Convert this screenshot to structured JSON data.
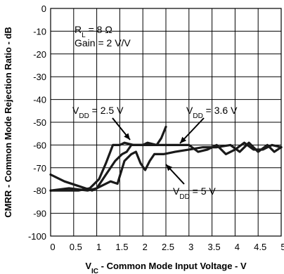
{
  "chart_data": {
    "type": "line",
    "xlabel": {
      "main": "V",
      "sub": "IC",
      "rest": " - Common Mode Input Voltage - V"
    },
    "ylabel": "CMRR - Common Mode Rejection Ratio - dB",
    "xlim": [
      0,
      5
    ],
    "ylim": [
      -100,
      0
    ],
    "x_ticks": [
      "0",
      "0.5",
      "1",
      "1.5",
      "2",
      "2.5",
      "3",
      "3.5",
      "4",
      "4.5",
      "5"
    ],
    "y_ticks": [
      "0",
      "-10",
      "-20",
      "-30",
      "-40",
      "-50",
      "-60",
      "-70",
      "-80",
      "-90",
      "-100"
    ],
    "grid": true,
    "annotations": [
      {
        "main": "R",
        "sub": "L",
        "rest": " = 8 Ω"
      },
      {
        "main": "Gain = 2 V/V",
        "sub": "",
        "rest": ""
      }
    ],
    "series": [
      {
        "label": {
          "main": "V",
          "sub": "DD",
          "rest": " = 2.5 V"
        },
        "x": [
          0,
          0.3,
          0.6,
          0.85,
          1.05,
          1.2,
          1.35,
          1.5,
          1.6,
          1.8,
          2.0,
          2.1,
          2.3,
          2.4,
          2.5
        ],
        "y": [
          -80,
          -80,
          -80,
          -79,
          -75,
          -68,
          -60,
          -60,
          -59,
          -60,
          -60,
          -59,
          -60,
          -57,
          -52
        ]
      },
      {
        "label": {
          "main": "V",
          "sub": "DD",
          "rest": " = 3.6 V"
        },
        "x": [
          0,
          0.4,
          0.8,
          1.0,
          1.2,
          1.4,
          1.55,
          1.65,
          1.75,
          1.9,
          2.0,
          2.2,
          2.5,
          2.8,
          3.0,
          3.2,
          3.4,
          3.6,
          3.8,
          4.0,
          4.2,
          4.4,
          4.6,
          4.8,
          5.0
        ],
        "y": [
          -80,
          -79,
          -80,
          -79,
          -73,
          -67,
          -64,
          -63,
          -60,
          -60,
          -60,
          -60,
          -60,
          -60,
          -60,
          -63,
          -62,
          -60,
          -64,
          -62,
          -59,
          -62,
          -62,
          -60,
          -61
        ]
      },
      {
        "label": {
          "main": "V",
          "sub": "DD",
          "rest": " = 5 V"
        },
        "x": [
          0,
          0.3,
          0.6,
          0.9,
          1.1,
          1.3,
          1.45,
          1.6,
          1.75,
          1.85,
          1.95,
          2.05,
          2.15,
          2.25,
          2.45,
          2.7,
          3.0,
          3.3,
          3.6,
          3.9,
          4.1,
          4.3,
          4.5,
          4.7,
          4.85,
          5.0
        ],
        "y": [
          -73,
          -76,
          -78,
          -80,
          -78,
          -76,
          -77,
          -67,
          -64,
          -63,
          -68,
          -71,
          -67,
          -64,
          -64,
          -63,
          -62,
          -61,
          -61,
          -60,
          -63,
          -59,
          -63,
          -60,
          -63,
          -61
        ]
      }
    ]
  }
}
